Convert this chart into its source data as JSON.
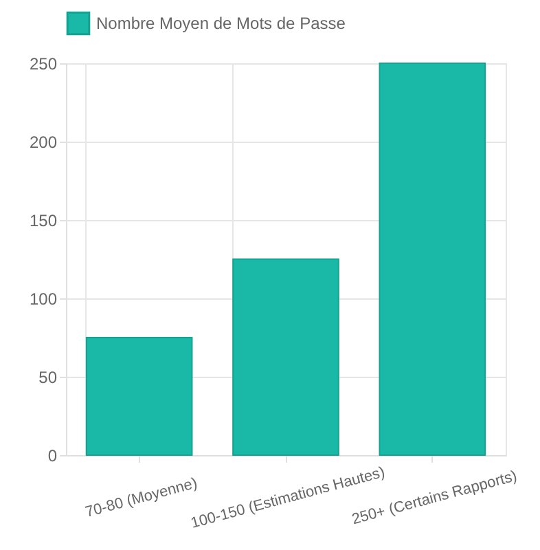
{
  "chart_data": {
    "type": "bar",
    "categories": [
      "70-80 (Moyenne)",
      "100-150 (Estimations Hautes)",
      "250+ (Certains Rapports)"
    ],
    "series": [
      {
        "name": "Nombre Moyen de Mots de Passe",
        "color": "#1ab8a6",
        "values": [
          75,
          125,
          250
        ]
      }
    ],
    "ylim": [
      0,
      250
    ],
    "yticks": [
      0,
      50,
      100,
      150,
      200,
      250
    ],
    "grid": true,
    "legend": "top"
  }
}
